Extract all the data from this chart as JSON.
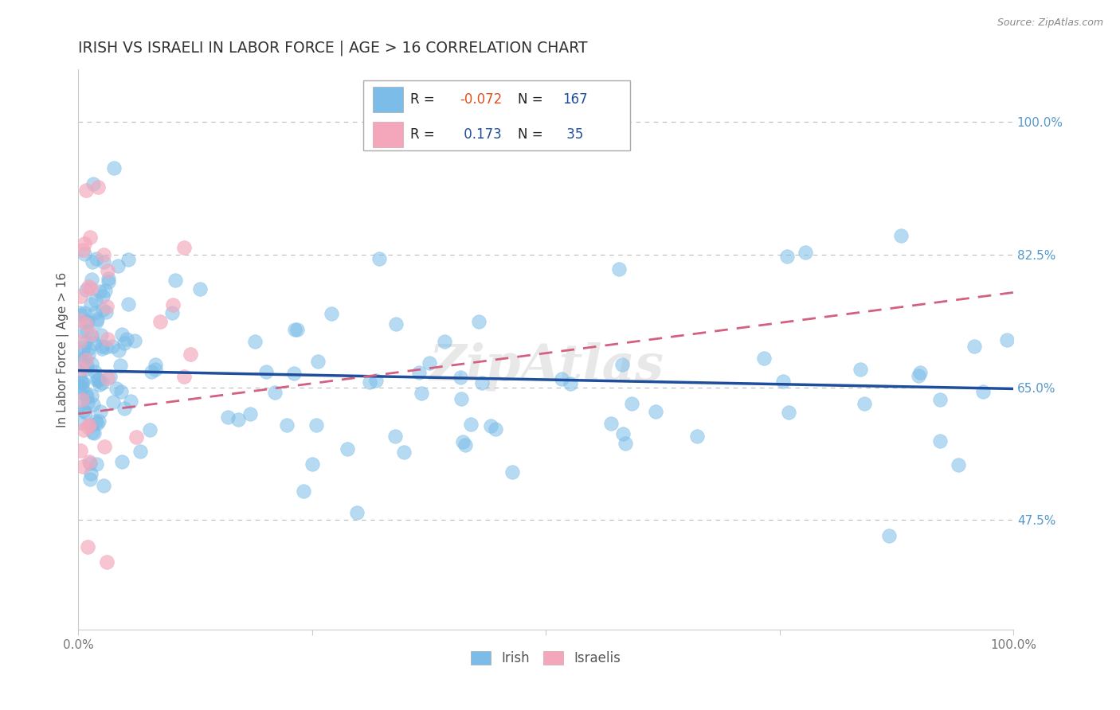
{
  "title": "IRISH VS ISRAELI IN LABOR FORCE | AGE > 16 CORRELATION CHART",
  "source_text": "Source: ZipAtlas.com",
  "xlabel": "",
  "ylabel": "In Labor Force | Age > 16",
  "xlim": [
    0.0,
    1.0
  ],
  "ylim": [
    0.33,
    1.07
  ],
  "x_ticks": [
    0.0,
    0.25,
    0.5,
    0.75,
    1.0
  ],
  "x_tick_labels": [
    "0.0%",
    "",
    "",
    "",
    "100.0%"
  ],
  "y_ticks_right": [
    0.475,
    0.65,
    0.825,
    1.0
  ],
  "y_tick_labels_right": [
    "47.5%",
    "65.0%",
    "82.5%",
    "100.0%"
  ],
  "irish_color": "#7bbde8",
  "irish_edge_color": "#5a9fd4",
  "israeli_color": "#f4a7bb",
  "israeli_edge_color": "#e07090",
  "irish_R": -0.072,
  "irish_N": 167,
  "israeli_R": 0.173,
  "israeli_N": 35,
  "trend_blue_color": "#1f4e9c",
  "trend_pink_color": "#d46080",
  "r_value_color": "#e05020",
  "n_value_color": "#1f4e9c",
  "legend_irish_label": "Irish",
  "legend_israeli_label": "Israelis",
  "watermark": "ZipAtlas",
  "grid_color": "#bbbbbb",
  "background_color": "#ffffff",
  "title_color": "#333333",
  "axis_label_color": "#555555",
  "tick_label_color_right": "#5599cc",
  "tick_label_color_bottom": "#777777"
}
